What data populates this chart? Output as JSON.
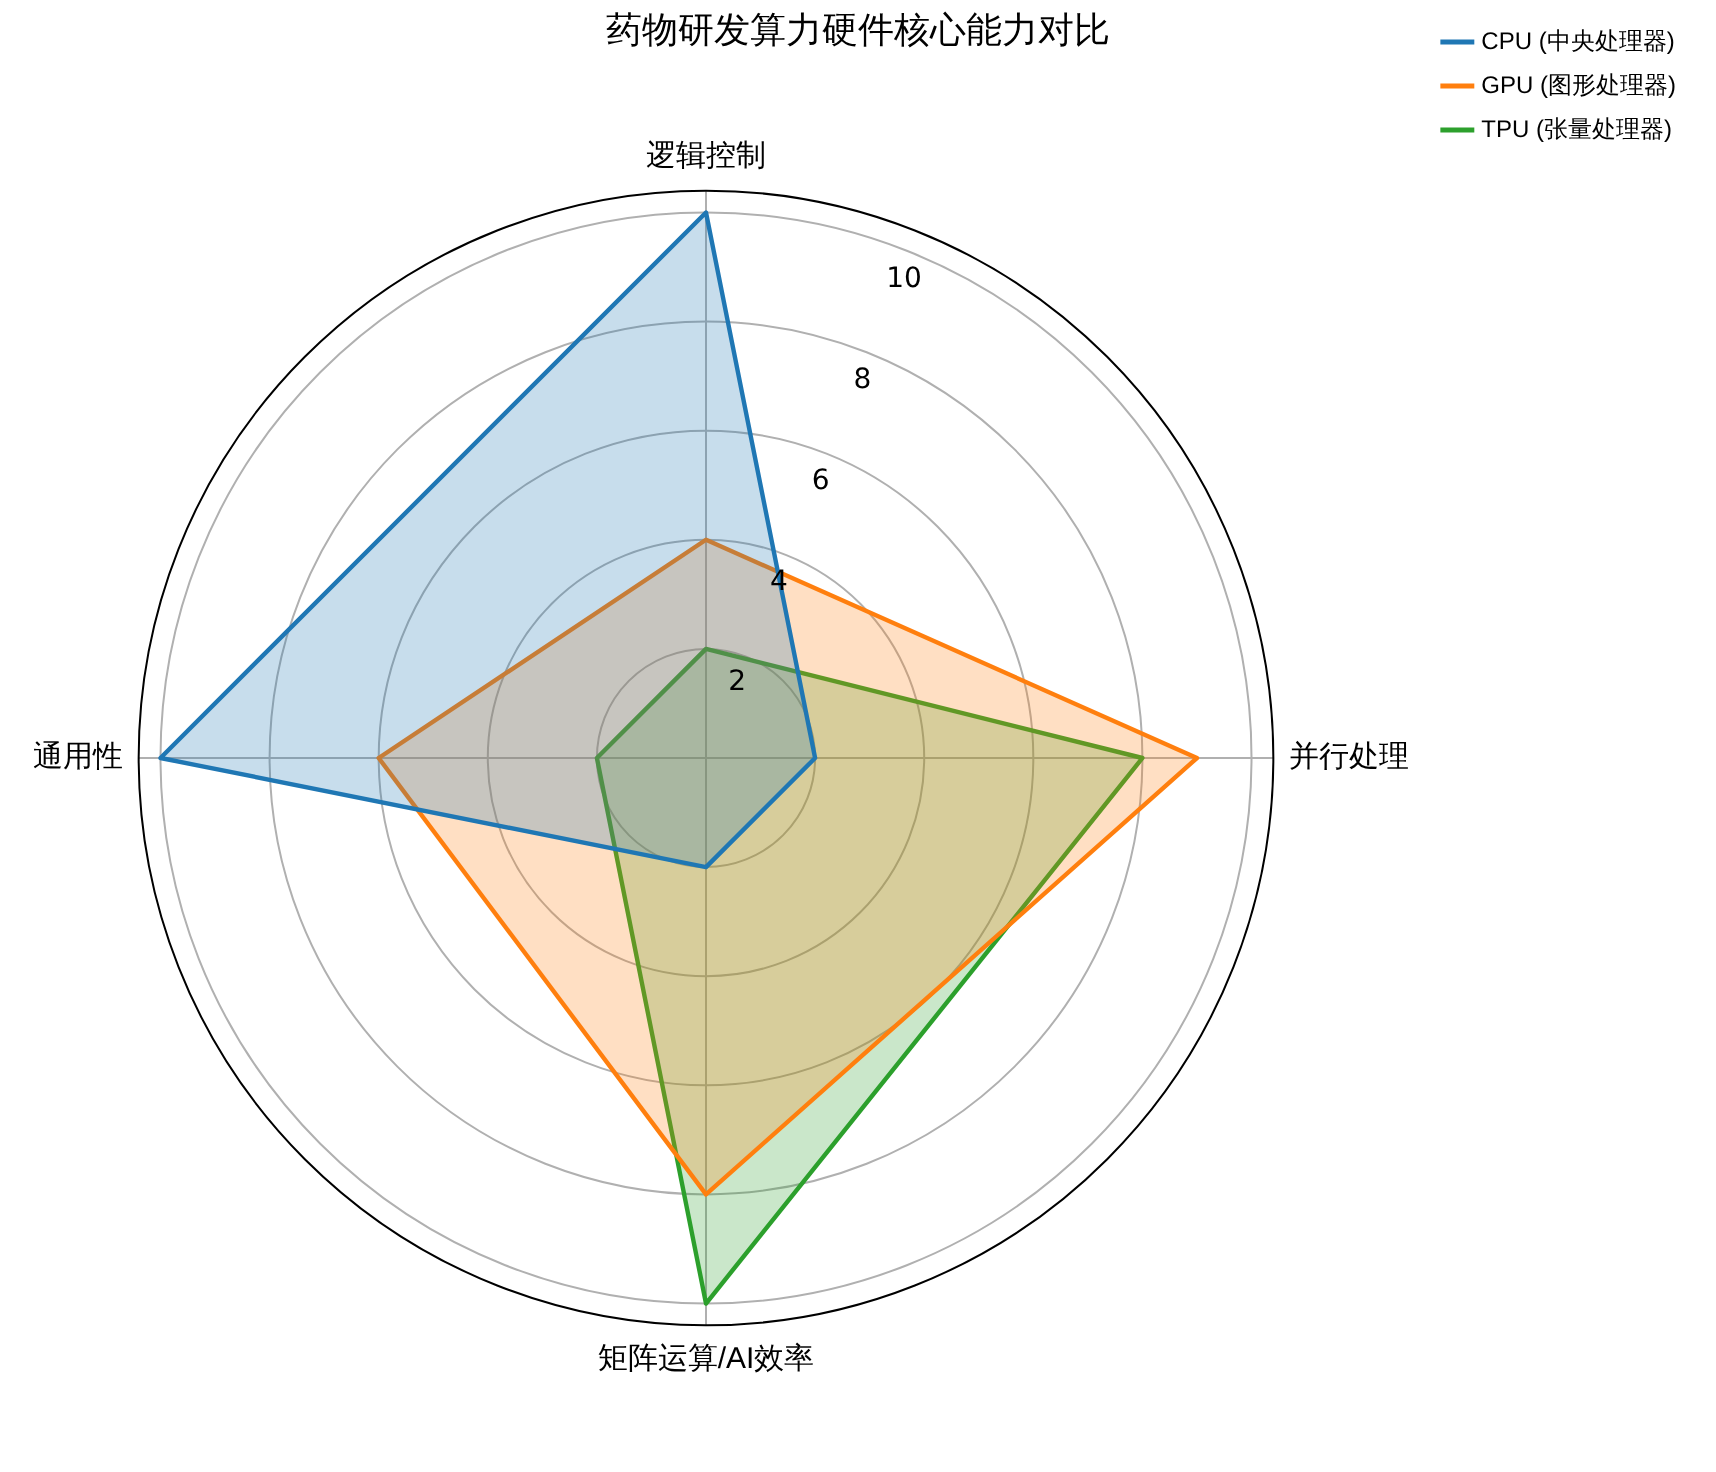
{
  "chart_data": {
    "type": "radar",
    "title": "药物研发算力硬件核心能力对比",
    "categories": [
      "逻辑控制",
      "并行处理",
      "矩阵运算/AI效率",
      "通用性"
    ],
    "series": [
      {
        "name": "CPU (中央处理器)",
        "color": "#1f77b4",
        "values": [
          10,
          2,
          2,
          10
        ]
      },
      {
        "name": "GPU (图形处理器)",
        "color": "#ff7f0e",
        "values": [
          4,
          9,
          8,
          6
        ]
      },
      {
        "name": "TPU (张量处理器)",
        "color": "#2ca02c",
        "values": [
          2,
          8,
          10,
          2
        ]
      }
    ],
    "ylim": [
      0,
      10.4
    ],
    "yticks": [
      2,
      4,
      6,
      8,
      10
    ],
    "grid": true,
    "legend": "top right",
    "marker": "none",
    "line_style": "solid"
  }
}
